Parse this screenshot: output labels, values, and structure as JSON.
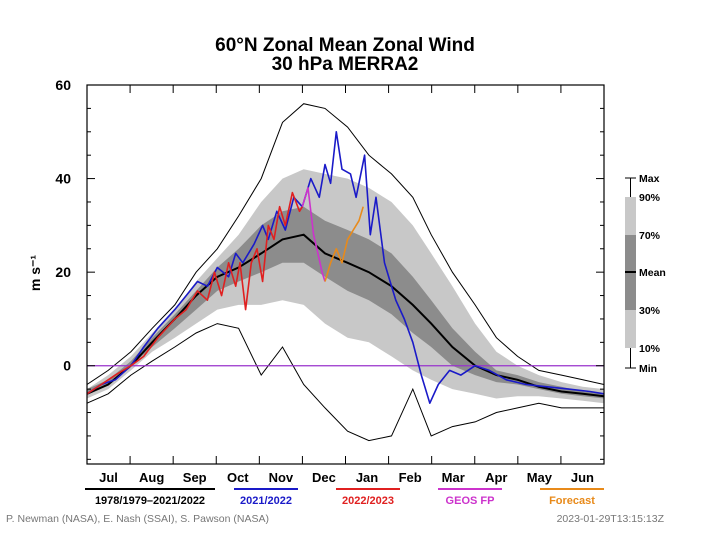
{
  "title_line1": "60°N Zonal Mean Zonal Wind",
  "title_line2": "30 hPa   MERRA2",
  "ylabel": "m s⁻¹",
  "credit_left": "P. Newman (NASA), E. Nash (SSAI), S. Pawson (NASA)",
  "credit_right": "2023-01-29T13:15:13Z",
  "legend": [
    {
      "label": "1978/1979–2021/2022",
      "color": "#000000"
    },
    {
      "label": "2021/2022",
      "color": "#1a1ac8"
    },
    {
      "label": "2022/2023",
      "color": "#e02020"
    },
    {
      "label": "GEOS FP",
      "color": "#cc33cc"
    },
    {
      "label": "Forecast",
      "color": "#e88a1a"
    }
  ],
  "band_key": {
    "labels": [
      "Max",
      "90%",
      "70%",
      "Mean",
      "30%",
      "10%",
      "Min"
    ],
    "light_color": "#c8c8c8",
    "dark_color": "#8c8c8c"
  },
  "chart_data": {
    "type": "line",
    "x_unit": "day of year starting 1 July",
    "xlim": [
      0,
      365
    ],
    "ylim": [
      -21,
      60
    ],
    "yticks": [
      0,
      20,
      40,
      60
    ],
    "grid": false,
    "zero_line_color": "#9933cc",
    "months": [
      "Jul",
      "Aug",
      "Sep",
      "Oct",
      "Nov",
      "Dec",
      "Jan",
      "Feb",
      "Mar",
      "Apr",
      "May",
      "Jun"
    ],
    "climatology": {
      "x": [
        0,
        15,
        31,
        46,
        62,
        77,
        92,
        107,
        123,
        138,
        153,
        168,
        184,
        199,
        215,
        230,
        243,
        258,
        274,
        289,
        304,
        319,
        335,
        350,
        365
      ],
      "mean": [
        -6,
        -4,
        0,
        5,
        10,
        15,
        19,
        21,
        24,
        27,
        28,
        24,
        22,
        20,
        17,
        13,
        9,
        4,
        0,
        -2,
        -3,
        -4.5,
        -5.5,
        -6,
        -6.5
      ],
      "p30": [
        -6,
        -4,
        0,
        4,
        8,
        12,
        16,
        18,
        20,
        22,
        22,
        19,
        16,
        14,
        11,
        7,
        4,
        0,
        -2,
        -3.5,
        -4,
        -5,
        -6,
        -6.5,
        -7
      ],
      "p70": [
        -5,
        -3,
        1,
        6,
        11,
        16,
        21,
        25,
        30,
        33,
        34,
        31,
        29,
        27,
        24,
        19,
        14,
        8,
        3,
        -1,
        -2,
        -3.5,
        -4.5,
        -5.5,
        -6
      ],
      "p10": [
        -7,
        -5,
        -1,
        3,
        6,
        9,
        12,
        13,
        13,
        14,
        13,
        9,
        6,
        5,
        2,
        -1,
        -3,
        -5,
        -6,
        -7,
        -6.5,
        -6.5,
        -7,
        -7.5,
        -8
      ],
      "p90": [
        -5,
        -2,
        2,
        7,
        12,
        18,
        23,
        28,
        35,
        40,
        42,
        41,
        40,
        38,
        35,
        30,
        24,
        17,
        9,
        3,
        0,
        -2,
        -3.5,
        -4.5,
        -5
      ],
      "min": [
        -8,
        -6,
        -2,
        1,
        4,
        7,
        9,
        8,
        -2,
        4,
        -4,
        -9,
        -14,
        -16,
        -15,
        -5,
        -15,
        -13,
        -12,
        -10,
        -9,
        -8,
        -9,
        -9,
        -9
      ],
      "max": [
        -4,
        -1,
        3,
        8,
        13,
        20,
        25,
        32,
        40,
        52,
        56,
        55,
        51,
        45,
        41,
        36,
        28,
        20,
        13,
        6,
        2,
        -1,
        -2,
        -3,
        -4
      ]
    },
    "series": [
      {
        "name": "2021/2022",
        "color": "#1a1ac8",
        "x": [
          0,
          10,
          20,
          31,
          40,
          50,
          62,
          70,
          78,
          85,
          92,
          100,
          105,
          110,
          118,
          124,
          128,
          134,
          140,
          146,
          152,
          158,
          164,
          168,
          172,
          176,
          180,
          186,
          190,
          196,
          200,
          204,
          210,
          214,
          218,
          224,
          230,
          236,
          242,
          248,
          256,
          264,
          274,
          284,
          296,
          310,
          325,
          340,
          355,
          365
        ],
        "y": [
          -6,
          -4,
          -3,
          0,
          4,
          8,
          12,
          15,
          18,
          17,
          21,
          19,
          24,
          22,
          26,
          30,
          27,
          33,
          29,
          36,
          34,
          40,
          36,
          43,
          39,
          50,
          42,
          41,
          36,
          45,
          28,
          36,
          22,
          18,
          14,
          10,
          5,
          -2,
          -8,
          -4,
          -1,
          -2,
          0,
          -1,
          -3,
          -4,
          -4.5,
          -5,
          -5.5,
          -6
        ]
      },
      {
        "name": "2022/2023",
        "color": "#e02020",
        "x": [
          0,
          10,
          20,
          31,
          40,
          50,
          62,
          70,
          78,
          85,
          90,
          95,
          100,
          105,
          108,
          112,
          116,
          120,
          124,
          128,
          132,
          136,
          140,
          145,
          150,
          152
        ],
        "y": [
          -6,
          -4,
          -2,
          0,
          2,
          6,
          10,
          12,
          16,
          14,
          20,
          15,
          22,
          17,
          22,
          12,
          22,
          25,
          18,
          30,
          27,
          34,
          30,
          37,
          33,
          34
        ]
      },
      {
        "name": "GEOS FP",
        "color": "#cc33cc",
        "x": [
          152,
          156,
          160,
          163,
          166,
          168
        ],
        "y": [
          34,
          38,
          28,
          24,
          20,
          18
        ]
      },
      {
        "name": "Forecast",
        "color": "#e88a1a",
        "x": [
          168,
          172,
          176,
          180,
          184,
          188,
          192,
          195
        ],
        "y": [
          18,
          22,
          25,
          22,
          27,
          29,
          31,
          34
        ]
      }
    ]
  }
}
